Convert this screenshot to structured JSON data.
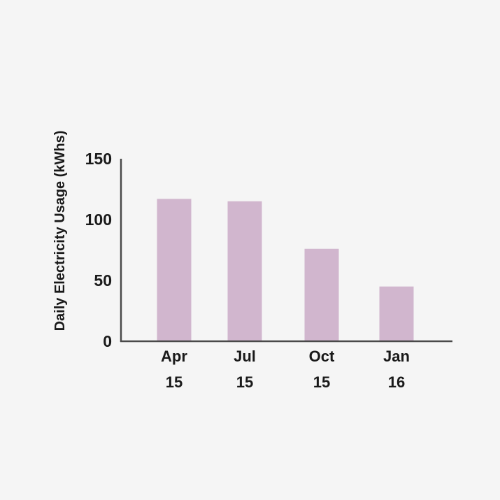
{
  "chart_data": {
    "type": "bar",
    "title": "",
    "xlabel": "",
    "ylabel": "Daily Electricity Usage (kWhs)",
    "categories": [
      [
        "Apr",
        "15"
      ],
      [
        "Jul",
        "15"
      ],
      [
        "Oct",
        "15"
      ],
      [
        "Jan",
        "16"
      ]
    ],
    "values": [
      117,
      115,
      76,
      45
    ],
    "ylim": [
      0,
      150
    ],
    "yticks": [
      "0",
      "50",
      "100",
      "150"
    ],
    "grid": false,
    "legend": "none",
    "colors": {
      "bar": "#d1b6ce",
      "axis": "#4a4a4a",
      "text": "#1a1a1a",
      "background": "#f5f5f5"
    }
  }
}
